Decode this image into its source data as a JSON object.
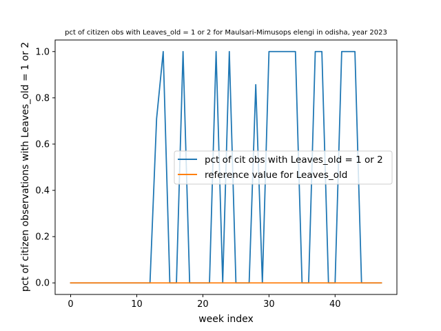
{
  "chart_data": {
    "type": "line",
    "title": "pct of citizen obs with Leaves_old = 1 or 2 for Maulsari-Mimusops elengi in odisha, year 2023",
    "xlabel": "week index",
    "ylabel": "pct of citizen observations with Leaves_old = 1 or 2",
    "xlim": [
      -2.35,
      49.35
    ],
    "ylim": [
      -0.05,
      1.05
    ],
    "xticks": [
      0,
      10,
      20,
      30,
      40
    ],
    "yticks": [
      0.0,
      0.2,
      0.4,
      0.6,
      0.8,
      1.0
    ],
    "xtick_labels": [
      "0",
      "10",
      "20",
      "30",
      "40"
    ],
    "ytick_labels": [
      "0.0",
      "0.2",
      "0.4",
      "0.6",
      "0.8",
      "1.0"
    ],
    "legend_position": "center-right",
    "series": [
      {
        "name": "pct of cit obs with Leaves_old = 1 or 2",
        "color": "#1f77b4",
        "x": [
          0,
          1,
          2,
          3,
          4,
          5,
          6,
          7,
          8,
          9,
          10,
          11,
          12,
          13,
          14,
          15,
          16,
          17,
          18,
          19,
          20,
          21,
          22,
          23,
          24,
          25,
          26,
          27,
          28,
          29,
          30,
          31,
          32,
          33,
          34,
          35,
          36,
          37,
          38,
          39,
          40,
          41,
          42,
          43,
          44,
          45,
          46,
          47
        ],
        "y": [
          0,
          0,
          0,
          0,
          0,
          0,
          0,
          0,
          0,
          0,
          0,
          0,
          0,
          0.71,
          1.0,
          0,
          0,
          1.0,
          0,
          0,
          0,
          0,
          1.0,
          0,
          1.0,
          0,
          0,
          0,
          0.857,
          0,
          1.0,
          1.0,
          1.0,
          1.0,
          1.0,
          0,
          0,
          1.0,
          1.0,
          0,
          0,
          1.0,
          1.0,
          1.0,
          0,
          0,
          0,
          0
        ]
      },
      {
        "name": "reference value for Leaves_old",
        "color": "#ff7f0e",
        "x": [
          0,
          1,
          2,
          3,
          4,
          5,
          6,
          7,
          8,
          9,
          10,
          11,
          12,
          13,
          14,
          15,
          16,
          17,
          18,
          19,
          20,
          21,
          22,
          23,
          24,
          25,
          26,
          27,
          28,
          29,
          30,
          31,
          32,
          33,
          34,
          35,
          36,
          37,
          38,
          39,
          40,
          41,
          42,
          43,
          44,
          45,
          46,
          47
        ],
        "y": [
          0,
          0,
          0,
          0,
          0,
          0,
          0,
          0,
          0,
          0,
          0,
          0,
          0,
          0,
          0,
          0,
          0,
          0,
          0,
          0,
          0,
          0,
          0,
          0,
          0,
          0,
          0,
          0,
          0,
          0,
          0,
          0,
          0,
          0,
          0,
          0,
          0,
          0,
          0,
          0,
          0,
          0,
          0,
          0,
          0,
          0,
          0,
          0
        ]
      }
    ]
  }
}
